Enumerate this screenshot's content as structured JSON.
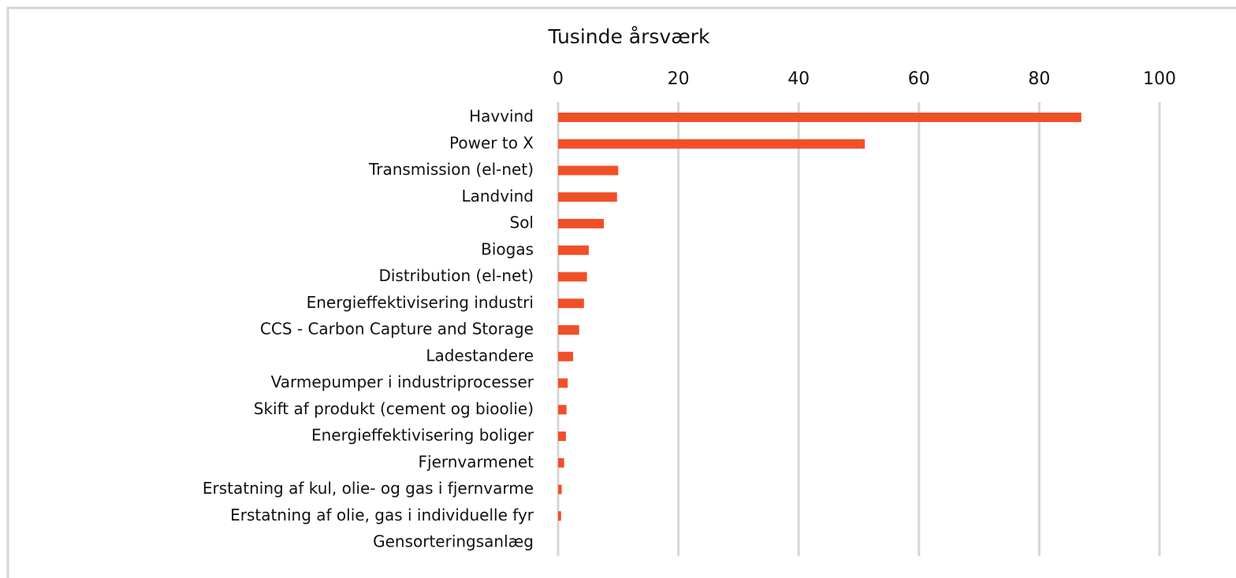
{
  "chart_data": {
    "type": "barh",
    "title": "Tusinde årsværk",
    "categories": [
      "Havvind",
      "Power to X",
      "Transmission (el-net)",
      "Landvind",
      "Sol",
      "Biogas",
      "Distribution (el-net)",
      "Energieffektivisering industri",
      "CCS - Carbon Capture and Storage",
      "Ladestandere",
      "Varmepumper i industriprocesser",
      "Skift af produkt (cement og bioolie)",
      "Energieffektivisering boliger",
      "Fjernvarmenet",
      "Erstatning af kul, olie- og gas i fjernvarme",
      "Erstatning af olie, gas i individuelle fyr",
      "Gensorteringsanlæg"
    ],
    "values": [
      87,
      51,
      10,
      9.8,
      7.6,
      5.1,
      4.8,
      4.3,
      3.5,
      2.5,
      1.6,
      1.4,
      1.3,
      1.0,
      0.6,
      0.5,
      0
    ],
    "color": "#f05028",
    "xlim": [
      0,
      100
    ],
    "xticks": [
      0,
      20,
      40,
      60,
      80,
      100
    ],
    "grid": true
  }
}
